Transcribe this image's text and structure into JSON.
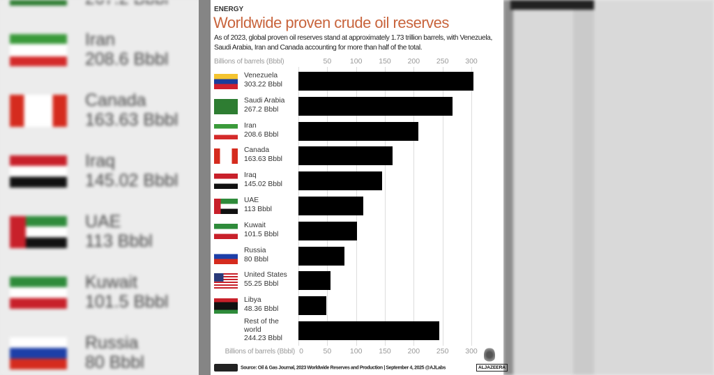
{
  "header": {
    "kicker": "ENERGY",
    "title": "Worldwide proven crude oil reserves",
    "subtitle": "As of 2023, global proven oil reserves stand at approximately 1.73 trillion barrels, with Venezuela, Saudi Arabia, Iran and Canada accounting for more than half of the total."
  },
  "chart_data": {
    "type": "bar",
    "orientation": "horizontal",
    "title": "Worldwide proven crude oil reserves",
    "xlabel": "Billions of barrels (Bbbl)",
    "xlim": [
      0,
      300
    ],
    "ticks_top": [
      "50",
      "100",
      "150",
      "200",
      "250",
      "300"
    ],
    "ticks_bottom": [
      "0",
      "50",
      "100",
      "150",
      "200",
      "250",
      "300"
    ],
    "categories": [
      "Venezuela",
      "Saudi Arabia",
      "Iran",
      "Canada",
      "Iraq",
      "UAE",
      "Kuwait",
      "Russia",
      "United States",
      "Libya",
      "Rest of the world"
    ],
    "value_labels": [
      "303.22 Bbbl",
      "267.2 Bbbl",
      "208.6 Bbbl",
      "163.63 Bbbl",
      "145.02 Bbbl",
      "113 Bbbl",
      "101.5 Bbbl",
      "80 Bbbl",
      "55.25 Bbbl",
      "48.36 Bbbl",
      "244.23 Bbbl"
    ],
    "values": [
      303.22,
      267.2,
      208.6,
      163.63,
      145.02,
      113,
      101.5,
      80,
      55.25,
      48.36,
      244.23
    ],
    "flags": [
      "venezuela",
      "saudi",
      "iran",
      "canada",
      "iraq",
      "uae",
      "kuwait",
      "russia",
      "usa",
      "libya",
      ""
    ],
    "bar_color": "#000000"
  },
  "footer": {
    "source": "Source: Oil & Gas Journal, 2023 Worldwide Reserves and Production  |  September 4, 2025   @AJLabs",
    "logo": "ALJAZEERA"
  }
}
